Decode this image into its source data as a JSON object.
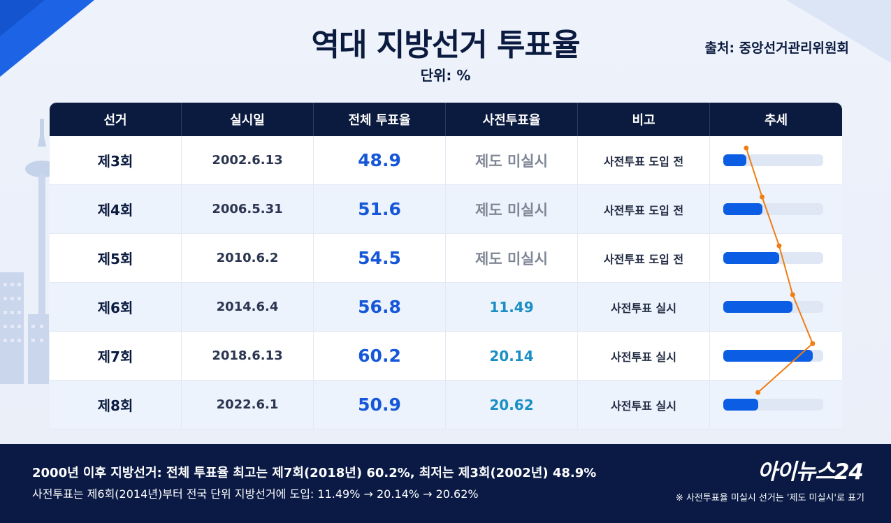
{
  "title": "역대 지방선거 투표율",
  "unit": "단위: %",
  "source": "출처: 중앙선거관리위원회",
  "columns": [
    "선거",
    "실시일",
    "전체 투표율",
    "사전투표율",
    "비고",
    "추세"
  ],
  "rows": [
    {
      "election": "제3회",
      "date": "2002.6.13",
      "total": "48.9",
      "early": "제도 미실시",
      "note": "사전투표 도입 전"
    },
    {
      "election": "제4회",
      "date": "2006.5.31",
      "total": "51.6",
      "early": "제도 미실시",
      "note": "사전투표 도입 전"
    },
    {
      "election": "제5회",
      "date": "2010.6.2",
      "total": "54.5",
      "early": "제도 미실시",
      "note": "사전투표 도입 전"
    },
    {
      "election": "제6회",
      "date": "2014.6.4",
      "total": "56.8",
      "early": "11.49",
      "note": "사전투표 실시"
    },
    {
      "election": "제7회",
      "date": "2018.6.13",
      "total": "60.2",
      "early": "20.14",
      "note": "사전투표 실시"
    },
    {
      "election": "제8회",
      "date": "2022.6.1",
      "total": "50.9",
      "early": "20.62",
      "note": "사전투표 실시"
    }
  ],
  "chart_data": {
    "type": "table",
    "title": "역대 지방선거 투표율",
    "unit": "%",
    "categories": [
      "제3회",
      "제4회",
      "제5회",
      "제6회",
      "제7회",
      "제8회"
    ],
    "series": [
      {
        "name": "전체 투표율",
        "values": [
          48.9,
          51.6,
          54.5,
          56.8,
          60.2,
          50.9
        ]
      },
      {
        "name": "사전투표율",
        "values": [
          null,
          null,
          null,
          11.49,
          20.14,
          20.62
        ]
      }
    ],
    "trend_bar_min": 45,
    "trend_bar_max": 62
  },
  "colors": {
    "header_bg": "#0b1b3f",
    "total_text": "#1557d8",
    "early_text": "#1a8fc4",
    "bar_fill": "#0b5ee3",
    "bar_track": "#dfe7f4",
    "trend_line": "#f07d12",
    "footer_bg": "#0a1a45"
  },
  "footer": {
    "line1": "2000년 이후 지방선거: 전체 투표율 최고는 제7회(2018년) 60.2%, 최저는 제3회(2002년) 48.9%",
    "line2": "사전투표는 제6회(2014년)부터 전국 단위 지방선거에 도입: 11.49% → 20.14% → 20.62%",
    "brand": "아이뉴스24",
    "remark": "※ 사전투표율 미실시 선거는 '제도 미실시'로 표기"
  }
}
